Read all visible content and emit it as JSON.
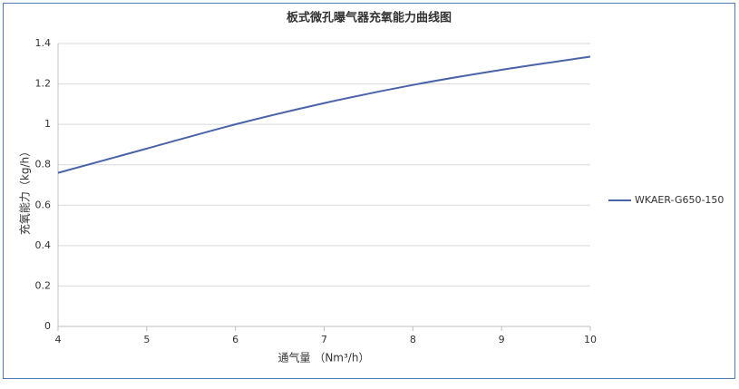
{
  "chart_data": {
    "type": "line",
    "title": "板式微孔曝气器充氧能力曲线图",
    "x_label": "通气量 （Nm³/h）",
    "y_label": "充氧能力（kg/h）",
    "x": [
      4,
      5,
      6,
      7,
      8,
      9,
      10
    ],
    "series": [
      {
        "name": "WKAER-G650-150",
        "color": "#4a63a8",
        "values": [
          0.76,
          0.88,
          1.0,
          1.105,
          1.195,
          1.27,
          1.335
        ]
      }
    ],
    "xlim": [
      4,
      10
    ],
    "xticks": [
      4,
      5,
      6,
      7,
      8,
      9,
      10
    ],
    "ylim": [
      0,
      1.4
    ],
    "yticks": [
      0,
      0.2,
      0.4,
      0.6,
      0.8,
      1,
      1.2,
      1.4
    ],
    "grid": true,
    "legend": "right"
  }
}
